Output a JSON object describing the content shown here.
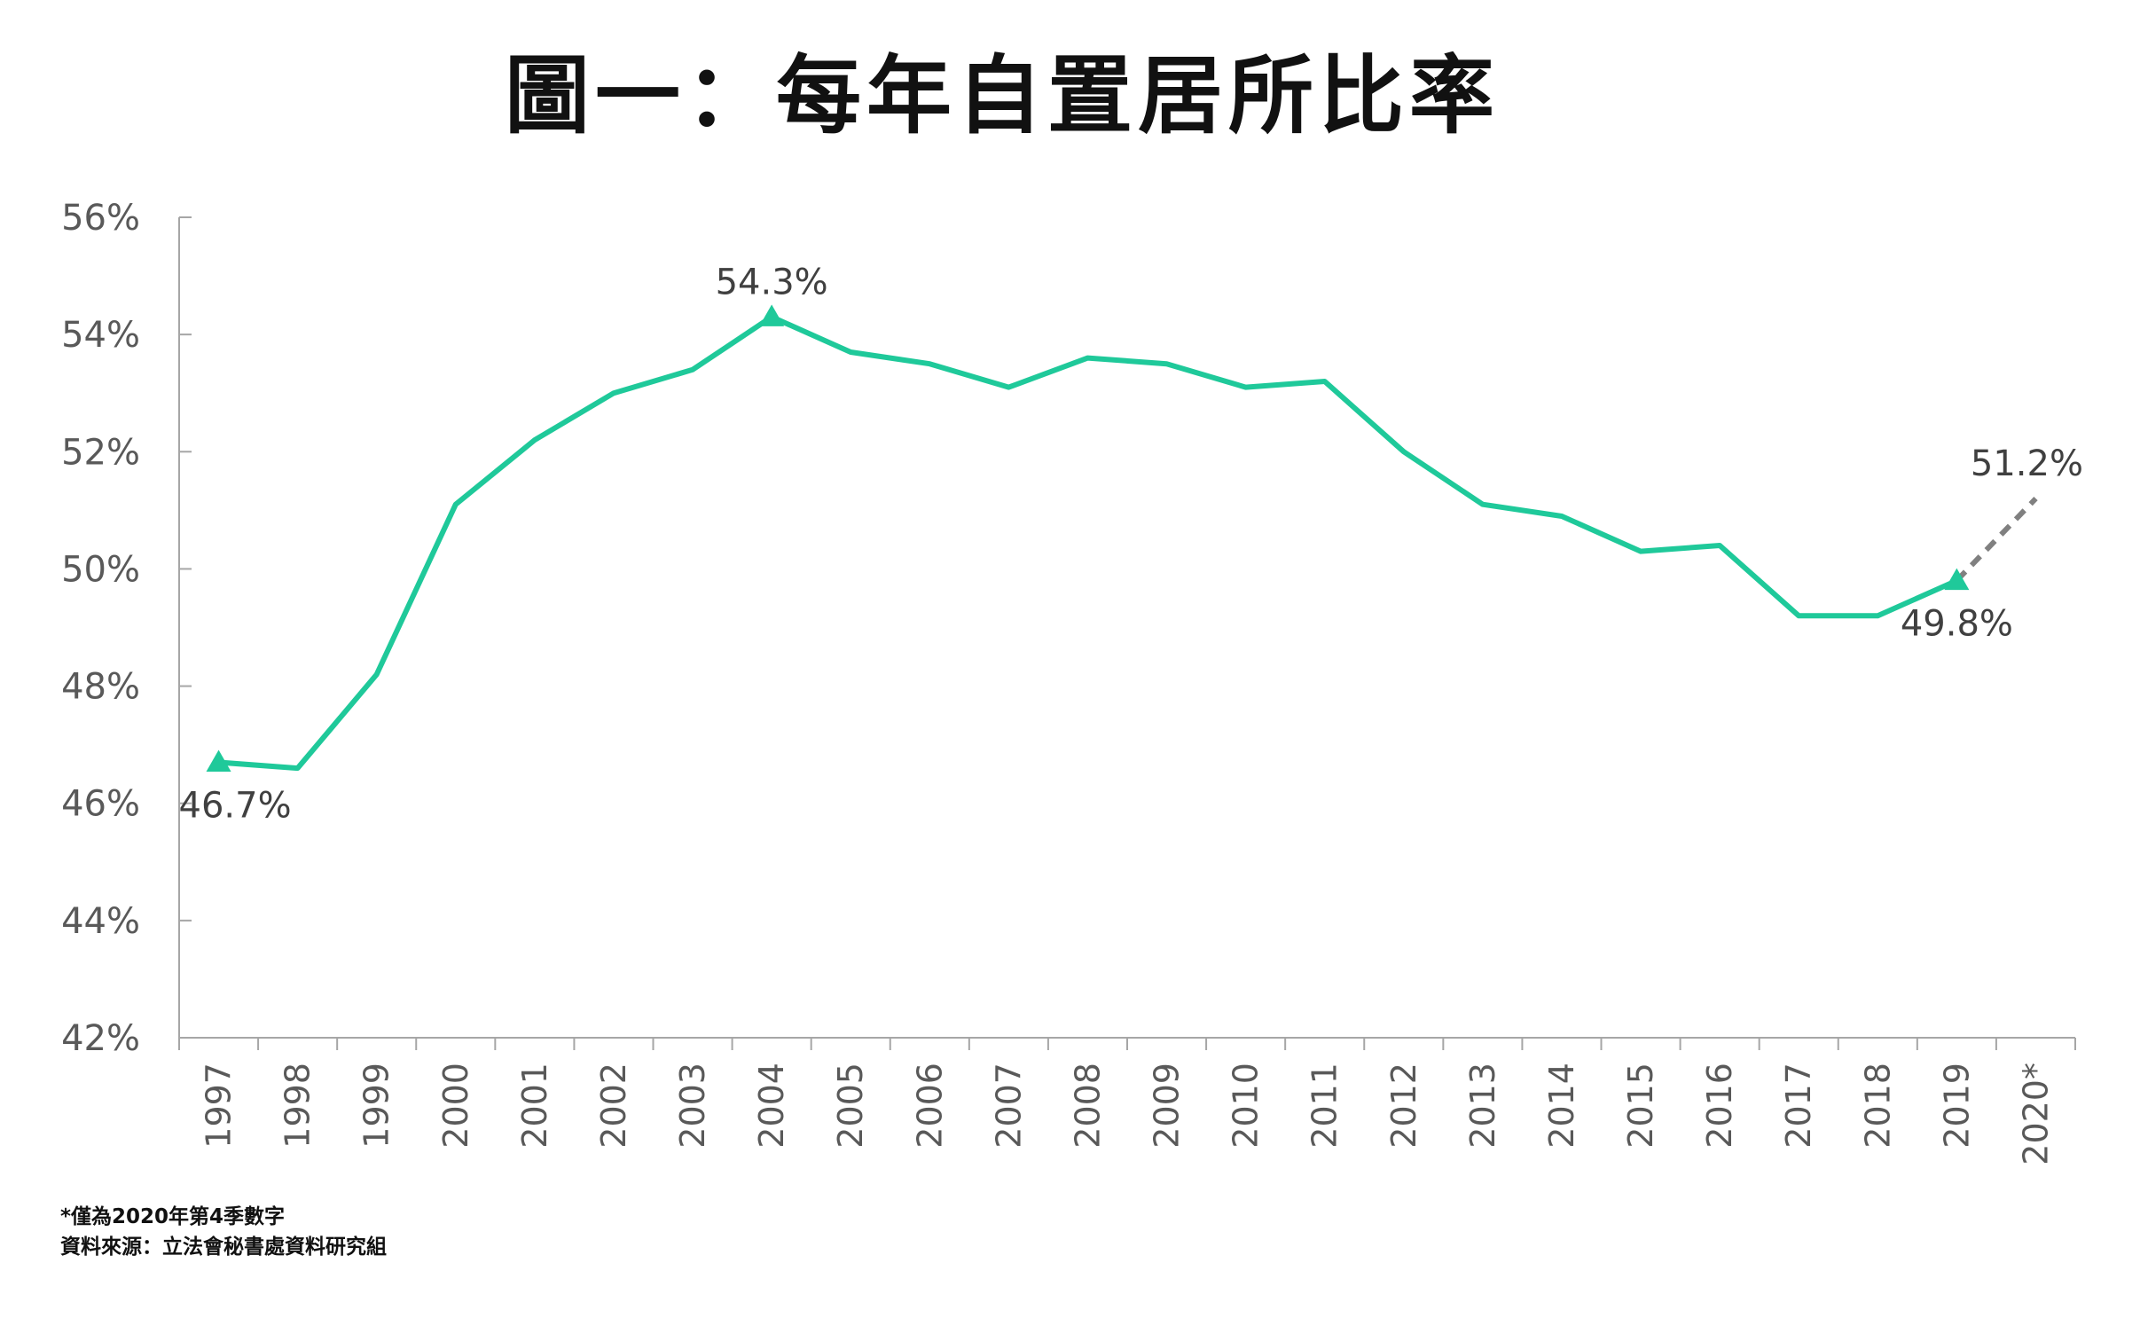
{
  "chart_data": {
    "type": "line",
    "title": "圖一：每年自置居所比率",
    "xlabel": "",
    "ylabel": "",
    "categories": [
      "1997",
      "1998",
      "1999",
      "2000",
      "2001",
      "2002",
      "2003",
      "2004",
      "2005",
      "2006",
      "2007",
      "2008",
      "2009",
      "2010",
      "2011",
      "2012",
      "2013",
      "2014",
      "2015",
      "2016",
      "2017",
      "2018",
      "2019",
      "2020*"
    ],
    "series": [
      {
        "color": "#1fc99a",
        "values": [
          46.7,
          46.6,
          48.2,
          51.1,
          52.2,
          53.0,
          53.4,
          54.3,
          53.7,
          53.5,
          53.1,
          53.6,
          53.5,
          53.1,
          53.2,
          52.0,
          51.1,
          50.9,
          50.3,
          50.4,
          49.2,
          49.2,
          49.8,
          null
        ]
      },
      {
        "color": "#808080",
        "style": "dashed",
        "values": [
          null,
          null,
          null,
          null,
          null,
          null,
          null,
          null,
          null,
          null,
          null,
          null,
          null,
          null,
          null,
          null,
          null,
          null,
          null,
          null,
          null,
          null,
          49.8,
          51.2
        ]
      }
    ],
    "yticks": [
      "42%",
      "44%",
      "46%",
      "48%",
      "50%",
      "52%",
      "54%",
      "56%"
    ],
    "ylim": [
      42,
      56
    ],
    "grid": false,
    "legend": "none",
    "annotations": [
      {
        "category": "1997",
        "value": 46.7,
        "text": "46.7%",
        "marker": "triangle",
        "placement": "below"
      },
      {
        "category": "2004",
        "value": 54.3,
        "text": "54.3%",
        "marker": "triangle",
        "placement": "above"
      },
      {
        "category": "2019",
        "value": 49.8,
        "text": "49.8%",
        "marker": "triangle",
        "placement": "below"
      },
      {
        "category": "2020*",
        "value": 51.2,
        "text": "51.2%",
        "marker": "none",
        "placement": "above"
      }
    ]
  },
  "footnotes": {
    "note": "*僅為2020年第4季數字",
    "source": "資料來源：立法會秘書處資料研究組"
  }
}
